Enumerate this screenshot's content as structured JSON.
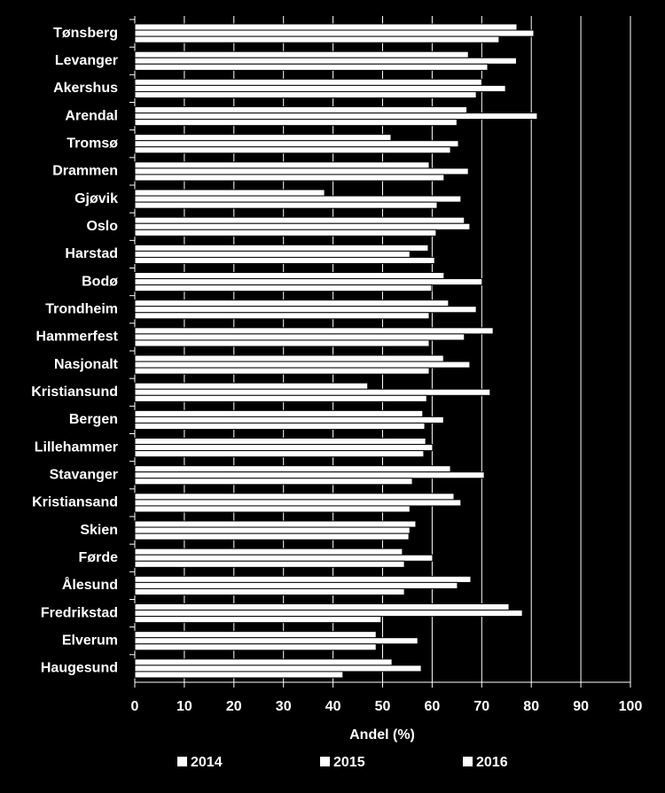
{
  "chart_data": {
    "type": "bar",
    "orientation": "horizontal",
    "x_label": "Andel (%)",
    "categories": [
      "Tønsberg",
      "Levanger",
      "Akershus",
      "Arendal",
      "Tromsø",
      "Drammen",
      "Gjøvik",
      "Oslo",
      "Harstad",
      "Bodø",
      "Trondheim",
      "Hammerfest",
      "Nasjonalt",
      "Kristiansund",
      "Bergen",
      "Lillehammer",
      "Stavanger",
      "Kristiansand",
      "Skien",
      "Førde",
      "Ålesund",
      "Fredrikstad",
      "Elverum",
      "Haugesund"
    ],
    "series": [
      {
        "name": "2014",
        "color": "#ffffff",
        "values": [
          77.1,
          67.3,
          70,
          67,
          51.7,
          59.4,
          38.3,
          66.5,
          59.2,
          62.4,
          63.3,
          72.3,
          62.3,
          47,
          58.1,
          58.7,
          63.7,
          64.4,
          56.7,
          54,
          67.8,
          75.5,
          48.7,
          51.9
        ]
      },
      {
        "name": "2015",
        "color": "#ffffff",
        "values": [
          80.5,
          77,
          74.8,
          81.2,
          65.3,
          67.3,
          65.8,
          67.6,
          55.5,
          70.1,
          68.9,
          66.5,
          67.6,
          71.7,
          62.3,
          60.1,
          70.5,
          65.8,
          55.5,
          60.1,
          65.1,
          78.2,
          57.1,
          57.8
        ]
      },
      {
        "name": "2016",
        "color": "#ffffff",
        "values": [
          73.5,
          71.2,
          68.9,
          65,
          63.7,
          62.4,
          61,
          60.8,
          60.5,
          59.9,
          59.4,
          59.4,
          59.4,
          58.9,
          58.5,
          58.3,
          56,
          55.5,
          55.3,
          54.4,
          54.4,
          49.7,
          48.7,
          42
        ]
      }
    ],
    "xlim": [
      0,
      100
    ],
    "xticks": [
      0,
      10,
      20,
      30,
      40,
      50,
      60,
      70,
      80,
      90,
      100
    ],
    "grid": true,
    "legend": "bottom"
  }
}
